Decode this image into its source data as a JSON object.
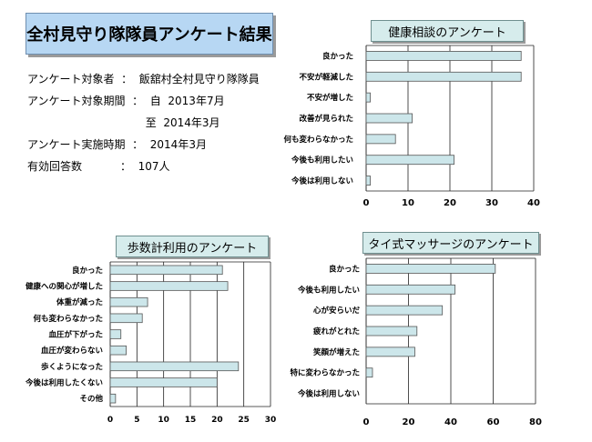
{
  "header": {
    "title": "全村見守り隊隊員アンケート結果",
    "info_lines": [
      "アンケート対象者  ：  飯舘村全村見守り隊隊員",
      "アンケート対象期間  ：  自  2013年7月",
      "                                  至  2014年3月",
      "アンケート実施時期  ：  2014年3月",
      "有効回答数           ：  107人"
    ]
  },
  "colors": {
    "bar_fill": "#cce6ea",
    "bar_stroke": "#555555",
    "title_bg": "#b7d7f3",
    "chart_title_bg": "#d6ecec"
  },
  "chart_data": [
    {
      "type": "bar",
      "orientation": "horizontal",
      "title": "健康相談のアンケート",
      "categories": [
        "良かった",
        "不安が軽減した",
        "不安が増した",
        "改善が見られた",
        "何も変わらなかった",
        "今後も利用したい",
        "今後は利用しない"
      ],
      "values": [
        37,
        37,
        1,
        11,
        7,
        21,
        1
      ],
      "xlim": [
        0,
        40
      ],
      "ticks": [
        0,
        10,
        20,
        30,
        40
      ],
      "grid": true
    },
    {
      "type": "bar",
      "orientation": "horizontal",
      "title": "歩数計利用のアンケート",
      "categories": [
        "良かった",
        "健康への関心が増した",
        "体重が減った",
        "何も変わらなかった",
        "血圧が下がった",
        "血圧が変わらない",
        "歩くようになった",
        "今後は利用したくない",
        "その他"
      ],
      "values": [
        21,
        22,
        7,
        6,
        2,
        3,
        24,
        20,
        1
      ],
      "xlim": [
        0,
        30
      ],
      "ticks": [
        0,
        5,
        10,
        15,
        20,
        25,
        30
      ],
      "grid": true
    },
    {
      "type": "bar",
      "orientation": "horizontal",
      "title": "タイ式マッサージのアンケート",
      "categories": [
        "良かった",
        "今後も利用したい",
        "心が安らいだ",
        "疲れがとれた",
        "笑顔が増えた",
        "特に変わらなかった",
        "今後は利用しない"
      ],
      "values": [
        61,
        42,
        36,
        24,
        23,
        3,
        0
      ],
      "xlim": [
        0,
        80
      ],
      "ticks": [
        0,
        20,
        40,
        60,
        80
      ],
      "grid": true
    }
  ]
}
